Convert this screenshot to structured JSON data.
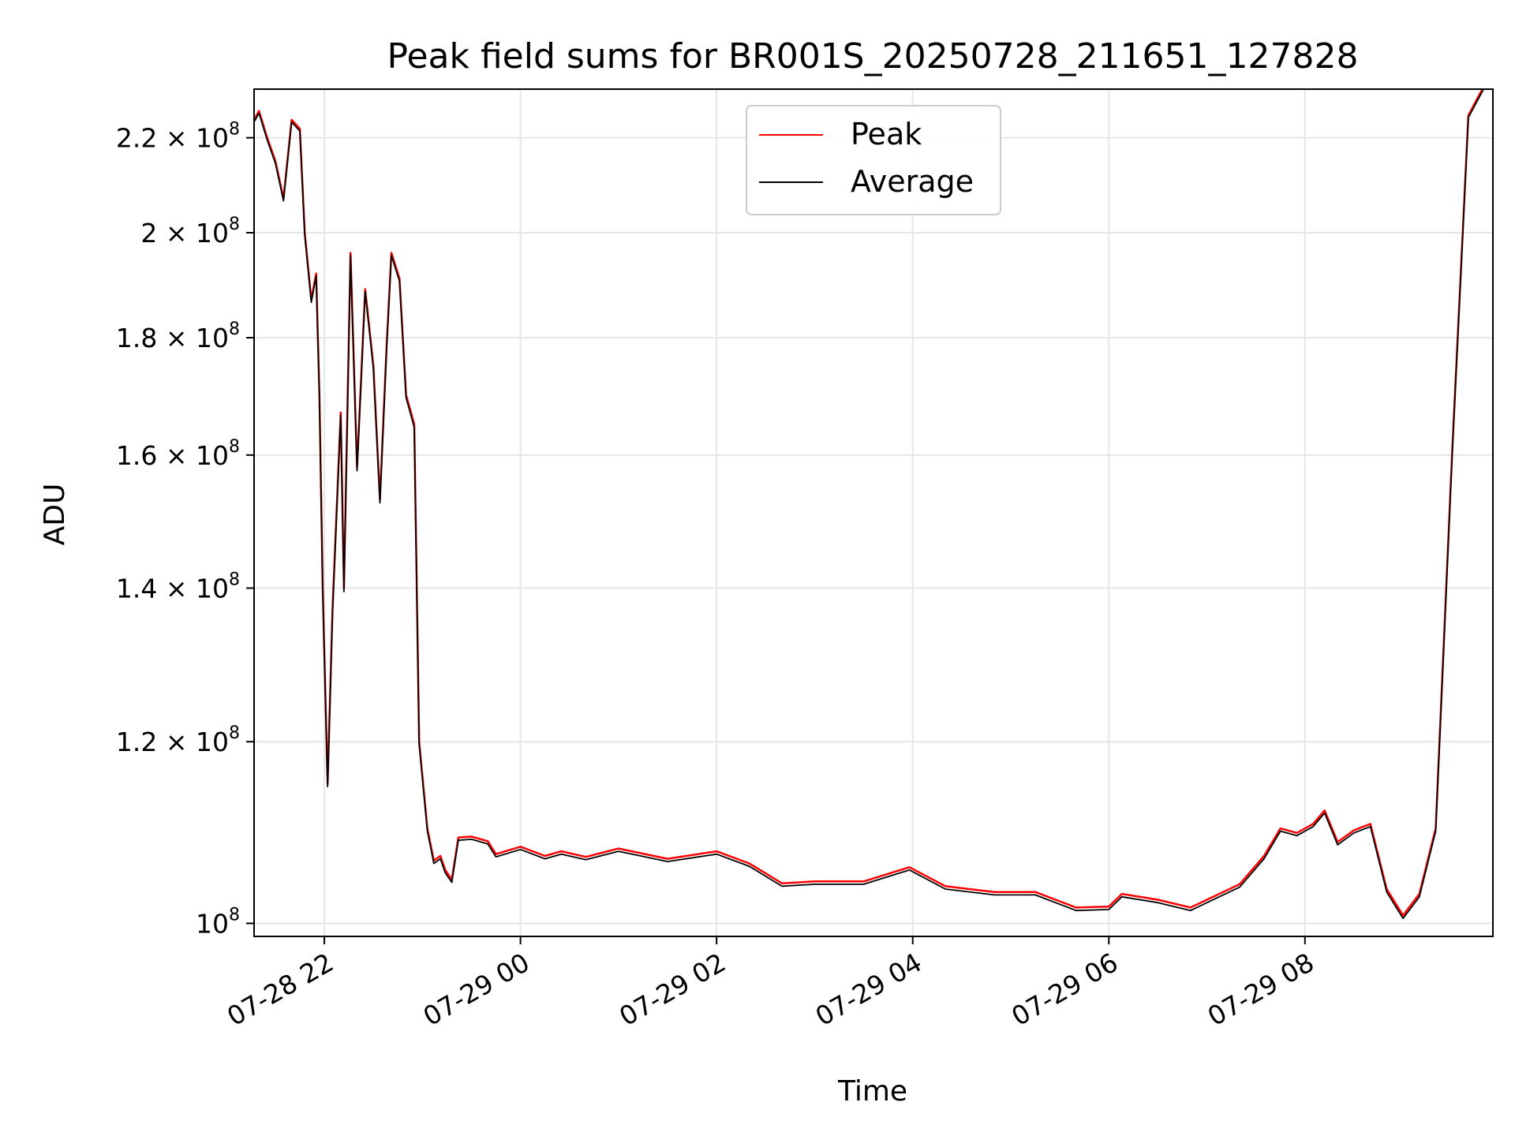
{
  "chart_data": {
    "type": "line",
    "title": "Peak field sums for BR001S_20250728_211651_127828",
    "xlabel": "Time",
    "ylabel": "ADU",
    "yscale": "log",
    "grid": true,
    "legend_position": "top-center",
    "xlim": [
      "2025-07-28 21:17",
      "2025-07-29 09:55"
    ],
    "ylim": [
      98700000,
      231000000
    ],
    "x_ticks": [
      {
        "t": "2025-07-28 22:00",
        "label": "07-28 22"
      },
      {
        "t": "2025-07-29 00:00",
        "label": "07-29 00"
      },
      {
        "t": "2025-07-29 02:00",
        "label": "07-29 02"
      },
      {
        "t": "2025-07-29 04:00",
        "label": "07-29 04"
      },
      {
        "t": "2025-07-29 06:00",
        "label": "07-29 06"
      },
      {
        "t": "2025-07-29 08:00",
        "label": "07-29 08"
      }
    ],
    "y_ticks": [
      {
        "v": 100000000,
        "mant": "",
        "exp": "8",
        "label": "10^8"
      },
      {
        "v": 120000000,
        "mant": "1.2",
        "exp": "8",
        "label": "1.2 × 10^8"
      },
      {
        "v": 140000000,
        "mant": "1.4",
        "exp": "8",
        "label": "1.4 × 10^8"
      },
      {
        "v": 160000000,
        "mant": "1.6",
        "exp": "8",
        "label": "1.6 × 10^8"
      },
      {
        "v": 180000000,
        "mant": "1.8",
        "exp": "8",
        "label": "1.8 × 10^8"
      },
      {
        "v": 200000000,
        "mant": "2",
        "exp": "8",
        "label": "2 × 10^8"
      },
      {
        "v": 220000000,
        "mant": "2.2",
        "exp": "8",
        "label": "2.2 × 10^8"
      }
    ],
    "series": [
      {
        "name": "Peak",
        "color": "#ff0000",
        "x": [
          "2025-07-28 21:17",
          "2025-07-28 21:20",
          "2025-07-28 21:25",
          "2025-07-28 21:30",
          "2025-07-28 21:35",
          "2025-07-28 21:40",
          "2025-07-28 21:45",
          "2025-07-28 21:48",
          "2025-07-28 21:52",
          "2025-07-28 21:55",
          "2025-07-28 21:57",
          "2025-07-28 21:59",
          "2025-07-28 22:02",
          "2025-07-28 22:05",
          "2025-07-28 22:10",
          "2025-07-28 22:12",
          "2025-07-28 22:16",
          "2025-07-28 22:20",
          "2025-07-28 22:25",
          "2025-07-28 22:30",
          "2025-07-28 22:34",
          "2025-07-28 22:38",
          "2025-07-28 22:41",
          "2025-07-28 22:46",
          "2025-07-28 22:50",
          "2025-07-28 22:55",
          "2025-07-28 22:58",
          "2025-07-28 23:03",
          "2025-07-28 23:07",
          "2025-07-28 23:11",
          "2025-07-28 23:14",
          "2025-07-28 23:18",
          "2025-07-28 23:22",
          "2025-07-28 23:30",
          "2025-07-28 23:40",
          "2025-07-28 23:45",
          "2025-07-29 00:00",
          "2025-07-29 00:15",
          "2025-07-29 00:25",
          "2025-07-29 00:40",
          "2025-07-29 01:00",
          "2025-07-29 01:30",
          "2025-07-29 02:00",
          "2025-07-29 02:20",
          "2025-07-29 02:40",
          "2025-07-29 03:00",
          "2025-07-29 03:30",
          "2025-07-29 03:58",
          "2025-07-29 04:20",
          "2025-07-29 04:50",
          "2025-07-29 05:15",
          "2025-07-29 05:40",
          "2025-07-29 06:00",
          "2025-07-29 06:08",
          "2025-07-29 06:30",
          "2025-07-29 06:50",
          "2025-07-29 07:05",
          "2025-07-29 07:20",
          "2025-07-29 07:35",
          "2025-07-29 07:45",
          "2025-07-29 07:55",
          "2025-07-29 08:05",
          "2025-07-29 08:12",
          "2025-07-29 08:20",
          "2025-07-29 08:30",
          "2025-07-29 08:40",
          "2025-07-29 08:50",
          "2025-07-29 09:00",
          "2025-07-29 09:10",
          "2025-07-29 09:20",
          "2025-07-29 09:30",
          "2025-07-29 09:40",
          "2025-07-29 09:50",
          "2025-07-29 09:55"
        ],
        "values": [
          224000000,
          226000000,
          220000000,
          215000000,
          207000000,
          224000000,
          222000000,
          200000000,
          187000000,
          192000000,
          170000000,
          140000000,
          115000000,
          137000000,
          167000000,
          140000000,
          196000000,
          158000000,
          189000000,
          175000000,
          153000000,
          178000000,
          196000000,
          191000000,
          170000000,
          165000000,
          120000000,
          110000000,
          106500000,
          107000000,
          105500000,
          104500000,
          109000000,
          109100000,
          108600000,
          107200000,
          108000000,
          107000000,
          107500000,
          106900000,
          107800000,
          106700000,
          107500000,
          106200000,
          104100000,
          104300000,
          104300000,
          105800000,
          103800000,
          103200000,
          103200000,
          101600000,
          101700000,
          103000000,
          102400000,
          101600000,
          102800000,
          104000000,
          107000000,
          110000000,
          109500000,
          110500000,
          112000000,
          108500000,
          109800000,
          110500000,
          103500000,
          100800000,
          103000000,
          110000000,
          160000000,
          225000000,
          232000000,
          233000000
        ]
      },
      {
        "name": "Average",
        "color": "#000000",
        "x": [
          "2025-07-28 21:17",
          "2025-07-28 21:20",
          "2025-07-28 21:25",
          "2025-07-28 21:30",
          "2025-07-28 21:35",
          "2025-07-28 21:40",
          "2025-07-28 21:45",
          "2025-07-28 21:48",
          "2025-07-28 21:52",
          "2025-07-28 21:55",
          "2025-07-28 21:57",
          "2025-07-28 21:59",
          "2025-07-28 22:02",
          "2025-07-28 22:05",
          "2025-07-28 22:10",
          "2025-07-28 22:12",
          "2025-07-28 22:16",
          "2025-07-28 22:20",
          "2025-07-28 22:25",
          "2025-07-28 22:30",
          "2025-07-28 22:34",
          "2025-07-28 22:38",
          "2025-07-28 22:41",
          "2025-07-28 22:46",
          "2025-07-28 22:50",
          "2025-07-28 22:55",
          "2025-07-28 22:58",
          "2025-07-28 23:03",
          "2025-07-28 23:07",
          "2025-07-28 23:11",
          "2025-07-28 23:14",
          "2025-07-28 23:18",
          "2025-07-28 23:22",
          "2025-07-28 23:30",
          "2025-07-28 23:40",
          "2025-07-28 23:45",
          "2025-07-29 00:00",
          "2025-07-29 00:15",
          "2025-07-29 00:25",
          "2025-07-29 00:40",
          "2025-07-29 01:00",
          "2025-07-29 01:30",
          "2025-07-29 02:00",
          "2025-07-29 02:20",
          "2025-07-29 02:40",
          "2025-07-29 03:00",
          "2025-07-29 03:30",
          "2025-07-29 03:58",
          "2025-07-29 04:20",
          "2025-07-29 04:50",
          "2025-07-29 05:15",
          "2025-07-29 05:40",
          "2025-07-29 06:00",
          "2025-07-29 06:08",
          "2025-07-29 06:30",
          "2025-07-29 06:50",
          "2025-07-29 07:05",
          "2025-07-29 07:20",
          "2025-07-29 07:35",
          "2025-07-29 07:45",
          "2025-07-29 07:55",
          "2025-07-29 08:05",
          "2025-07-29 08:12",
          "2025-07-29 08:20",
          "2025-07-29 08:30",
          "2025-07-29 08:40",
          "2025-07-29 08:50",
          "2025-07-29 09:00",
          "2025-07-29 09:10",
          "2025-07-29 09:20",
          "2025-07-29 09:30",
          "2025-07-29 09:40",
          "2025-07-29 09:50",
          "2025-07-29 09:55"
        ],
        "values": [
          223500000,
          225500000,
          219500000,
          214500000,
          206500000,
          223500000,
          221500000,
          199500000,
          186500000,
          191500000,
          169500000,
          139500000,
          114700000,
          136500000,
          166500000,
          139500000,
          195500000,
          157500000,
          188500000,
          174500000,
          152500000,
          177500000,
          195500000,
          190500000,
          169500000,
          164500000,
          119700000,
          109700000,
          106200000,
          106700000,
          105200000,
          104200000,
          108700000,
          108800000,
          108300000,
          106900000,
          107700000,
          106700000,
          107200000,
          106600000,
          107500000,
          106400000,
          107200000,
          105900000,
          103800000,
          104000000,
          104000000,
          105500000,
          103500000,
          102900000,
          102900000,
          101300000,
          101400000,
          102700000,
          102100000,
          101300000,
          102500000,
          103700000,
          106700000,
          109700000,
          109200000,
          110200000,
          111700000,
          108200000,
          109500000,
          110200000,
          103200000,
          100500000,
          102700000,
          109700000,
          159500000,
          224500000,
          231500000,
          232500000
        ]
      }
    ]
  }
}
